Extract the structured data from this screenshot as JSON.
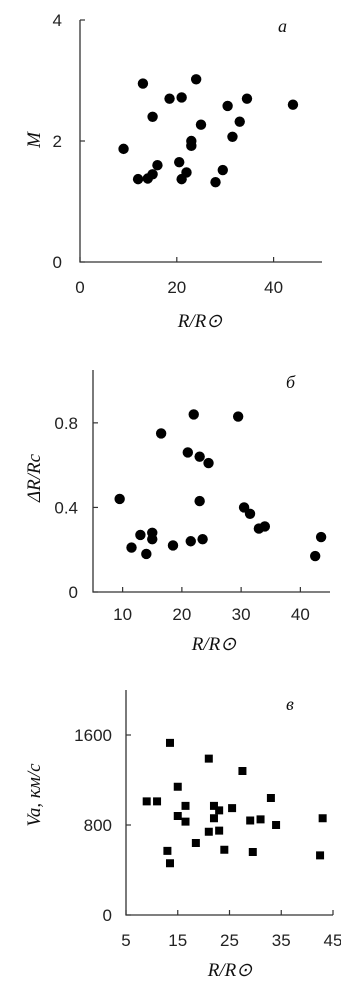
{
  "chart_data": [
    {
      "type": "scatter",
      "panel_label": "а",
      "xlabel": "R/R⊙",
      "ylabel": "M",
      "xlim": [
        0,
        50
      ],
      "ylim": [
        0,
        4
      ],
      "xticks": [
        0,
        20,
        40
      ],
      "yticks": [
        0,
        2,
        4
      ],
      "marker": "circle",
      "points": [
        [
          9,
          1.87
        ],
        [
          12,
          1.37
        ],
        [
          13,
          2.95
        ],
        [
          14,
          1.38
        ],
        [
          15,
          1.45
        ],
        [
          15,
          2.4
        ],
        [
          16,
          1.6
        ],
        [
          18.5,
          2.7
        ],
        [
          20.5,
          1.65
        ],
        [
          21,
          2.72
        ],
        [
          21,
          1.37
        ],
        [
          22,
          1.48
        ],
        [
          23,
          1.92
        ],
        [
          23,
          2.0
        ],
        [
          24,
          3.02
        ],
        [
          25,
          2.27
        ],
        [
          28,
          1.32
        ],
        [
          29.5,
          1.52
        ],
        [
          30.5,
          2.58
        ],
        [
          31.5,
          2.07
        ],
        [
          33,
          2.32
        ],
        [
          34.5,
          2.7
        ],
        [
          44,
          2.6
        ]
      ]
    },
    {
      "type": "scatter",
      "panel_label": "б",
      "xlabel": "R/R⊙",
      "ylabel": "ΔR/Rc",
      "xlim": [
        5,
        45
      ],
      "ylim": [
        0,
        1.05
      ],
      "xticks": [
        10,
        20,
        30,
        40
      ],
      "yticks": [
        0,
        0.4,
        0.8
      ],
      "marker": "circle",
      "points": [
        [
          9.5,
          0.44
        ],
        [
          11.5,
          0.21
        ],
        [
          13,
          0.27
        ],
        [
          14,
          0.18
        ],
        [
          15,
          0.25
        ],
        [
          15,
          0.28
        ],
        [
          16.5,
          0.75
        ],
        [
          18.5,
          0.22
        ],
        [
          21,
          0.66
        ],
        [
          21.5,
          0.24
        ],
        [
          22,
          0.84
        ],
        [
          23,
          0.43
        ],
        [
          23,
          0.64
        ],
        [
          23.5,
          0.25
        ],
        [
          24.5,
          0.61
        ],
        [
          29.5,
          0.83
        ],
        [
          30.5,
          0.4
        ],
        [
          31.5,
          0.37
        ],
        [
          33,
          0.3
        ],
        [
          34,
          0.31
        ],
        [
          42.5,
          0.17
        ],
        [
          43.5,
          0.26
        ]
      ]
    },
    {
      "type": "scatter",
      "panel_label": "в",
      "xlabel": "R/R⊙",
      "ylabel": "Va, км/с",
      "xlim": [
        5,
        45
      ],
      "ylim": [
        0,
        2000
      ],
      "xticks": [
        5,
        15,
        25,
        35,
        45
      ],
      "yticks": [
        0,
        800,
        1600
      ],
      "marker": "square",
      "points": [
        [
          9,
          1010
        ],
        [
          11,
          1010
        ],
        [
          13,
          570
        ],
        [
          13.5,
          1530
        ],
        [
          13.5,
          460
        ],
        [
          15,
          1140
        ],
        [
          15,
          880
        ],
        [
          16.5,
          970
        ],
        [
          16.5,
          830
        ],
        [
          18.5,
          640
        ],
        [
          21,
          740
        ],
        [
          21,
          1390
        ],
        [
          22,
          970
        ],
        [
          22,
          860
        ],
        [
          23,
          930
        ],
        [
          23,
          750
        ],
        [
          24,
          580
        ],
        [
          25.5,
          950
        ],
        [
          27.5,
          1280
        ],
        [
          29,
          840
        ],
        [
          29.5,
          560
        ],
        [
          31,
          850
        ],
        [
          33,
          1040
        ],
        [
          34,
          800
        ],
        [
          42.5,
          530
        ],
        [
          43,
          860
        ]
      ]
    }
  ]
}
